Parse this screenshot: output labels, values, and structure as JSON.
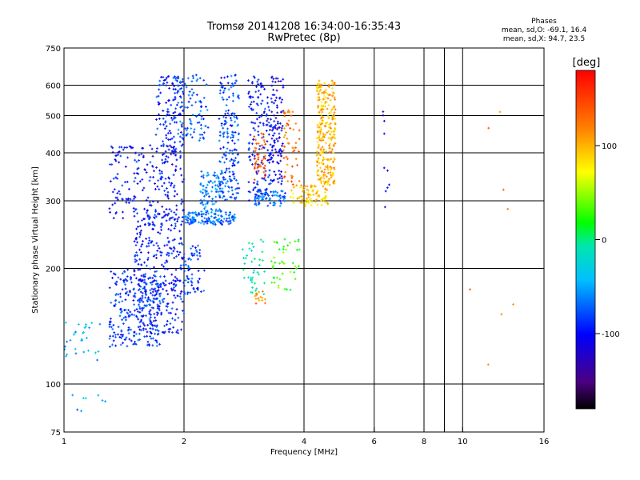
{
  "title": "Tromsø 20141208 16:34:00-16:35:43",
  "subtitle": "RwPretec (8p)",
  "stats": {
    "heading": "Phases",
    "line_o": "mean, sd,O: -69.1, 16.4",
    "line_x": "mean, sd,X:  94.7, 23.5"
  },
  "colorbar": {
    "label": "[deg]",
    "range": [
      -180,
      180
    ],
    "ticks": [
      {
        "value": 100,
        "label": "100"
      },
      {
        "value": 0,
        "label": "0"
      },
      {
        "value": -100,
        "label": "-100"
      }
    ]
  },
  "chart_data": {
    "type": "scatter",
    "xlabel": "Frequency [MHz]",
    "ylabel": "Stationary phase Virtual Height [km]",
    "xscale": "log",
    "yscale": "log",
    "xlim": [
      1,
      16
    ],
    "ylim": [
      75,
      750
    ],
    "x_ticks": [
      {
        "value": 1,
        "label": "1"
      },
      {
        "value": 2,
        "label": "2"
      },
      {
        "value": 4,
        "label": "4"
      },
      {
        "value": 6,
        "label": "6"
      },
      {
        "value": 8,
        "label": "8"
      },
      {
        "value": 10,
        "label": "10"
      },
      {
        "value": 16,
        "label": "16"
      }
    ],
    "x_grid": [
      2,
      4,
      6,
      8,
      9,
      10
    ],
    "y_ticks": [
      {
        "value": 75,
        "label": "75"
      },
      {
        "value": 100,
        "label": "100"
      },
      {
        "value": 200,
        "label": "200"
      },
      {
        "value": 300,
        "label": "300"
      },
      {
        "value": 400,
        "label": "400"
      },
      {
        "value": 500,
        "label": "500"
      },
      {
        "value": 600,
        "label": "600"
      },
      {
        "value": 750,
        "label": "750"
      }
    ],
    "y_grid": [
      100,
      200,
      300,
      400,
      500,
      600
    ],
    "grid": true,
    "clusters": [
      {
        "x_range": [
          1.3,
          1.75
        ],
        "y_range": [
          125,
          200
        ],
        "phase": -85,
        "count": 260
      },
      {
        "x_range": [
          1.5,
          2.0
        ],
        "y_range": [
          135,
          280
        ],
        "phase": -95,
        "count": 320
      },
      {
        "x_range": [
          1.0,
          1.25
        ],
        "y_range": [
          115,
          145
        ],
        "phase": -45,
        "count": 30
      },
      {
        "x_range": [
          1.3,
          2.0
        ],
        "y_range": [
          270,
          420
        ],
        "phase": -100,
        "count": 220
      },
      {
        "x_range": [
          1.7,
          2.0
        ],
        "y_range": [
          400,
          640
        ],
        "phase": -90,
        "count": 120
      },
      {
        "x_range": [
          1.9,
          2.3
        ],
        "y_range": [
          430,
          640
        ],
        "phase": -75,
        "count": 90
      },
      {
        "x_range": [
          2.0,
          2.7
        ],
        "y_range": [
          260,
          280
        ],
        "phase": -70,
        "count": 130
      },
      {
        "x_range": [
          2.45,
          2.75
        ],
        "y_range": [
          300,
          640
        ],
        "phase": -80,
        "count": 180
      },
      {
        "x_range": [
          2.2,
          2.5
        ],
        "y_range": [
          280,
          360
        ],
        "phase": -60,
        "count": 90
      },
      {
        "x_range": [
          2.9,
          3.3
        ],
        "y_range": [
          300,
          640
        ],
        "phase": -95,
        "count": 150
      },
      {
        "x_range": [
          3.3,
          3.55
        ],
        "y_range": [
          330,
          640
        ],
        "phase": -110,
        "count": 110
      },
      {
        "x_range": [
          3.0,
          3.6
        ],
        "y_range": [
          290,
          320
        ],
        "phase": -70,
        "count": 70
      },
      {
        "x_range": [
          3.0,
          3.2
        ],
        "y_range": [
          340,
          450
        ],
        "phase": 140,
        "count": 45
      },
      {
        "x_range": [
          3.55,
          3.9
        ],
        "y_range": [
          330,
          520
        ],
        "phase": 130,
        "count": 55
      },
      {
        "x_range": [
          3.7,
          4.6
        ],
        "y_range": [
          290,
          330
        ],
        "phase": 90,
        "count": 90
      },
      {
        "x_range": [
          4.3,
          4.8
        ],
        "y_range": [
          330,
          620
        ],
        "phase": 100,
        "count": 280
      },
      {
        "x_range": [
          2.0,
          2.25
        ],
        "y_range": [
          170,
          230
        ],
        "phase": -80,
        "count": 60
      },
      {
        "x_range": [
          2.8,
          3.2
        ],
        "y_range": [
          170,
          240
        ],
        "phase": -15,
        "count": 40
      },
      {
        "x_range": [
          3.3,
          3.9
        ],
        "y_range": [
          175,
          240
        ],
        "phase": 30,
        "count": 45
      },
      {
        "x_range": [
          3.0,
          3.2
        ],
        "y_range": [
          160,
          175
        ],
        "phase": 120,
        "count": 15
      },
      {
        "x_range": [
          1.05,
          1.3
        ],
        "y_range": [
          85,
          95
        ],
        "phase": -55,
        "count": 8
      },
      {
        "x_range": [
          6.3,
          6.6
        ],
        "y_range": [
          250,
          600
        ],
        "phase": -120,
        "count": 10
      },
      {
        "x_range": [
          9.5,
          13.5
        ],
        "y_range": [
          110,
          560
        ],
        "phase": 120,
        "count": 8
      }
    ]
  }
}
